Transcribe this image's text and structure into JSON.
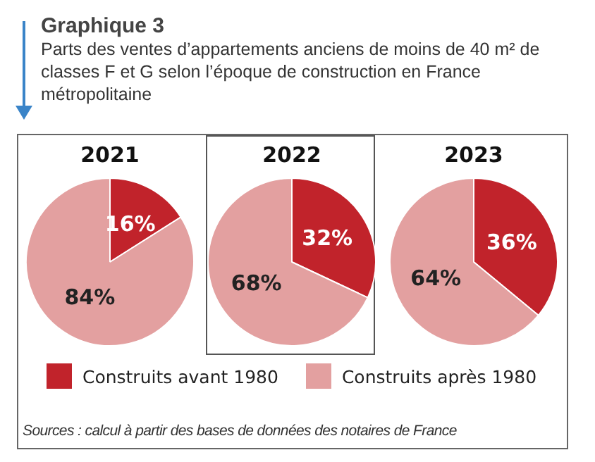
{
  "chart_data": [
    {
      "type": "pie",
      "title": "2021",
      "subtitle": "Parts des ventes d’appartements anciens de moins de 40 m² de classes F et G selon l’époque de construction en France métropolitaine",
      "annotations": [
        "Graphique 3",
        "Sources : calcul à partir des bases de données des notaires de France"
      ],
      "categories": [
        "Construits avant 1980",
        "Construits après 1980"
      ],
      "values": [
        16,
        84
      ],
      "colors": [
        "#c1232b",
        "#e3a0a0"
      ],
      "value_labels": [
        "16%",
        "84%"
      ],
      "legend": "bottom"
    },
    {
      "type": "pie",
      "title": "2022",
      "values": [
        32,
        68
      ],
      "colors": [
        "#c1232b",
        "#e3a0a0"
      ],
      "value_labels": [
        "32%",
        "68%"
      ]
    },
    {
      "type": "pie",
      "title": "2023",
      "values": [
        36,
        64
      ],
      "colors": [
        "#c1232b",
        "#e3a0a0"
      ],
      "value_labels": [
        "36%",
        "64%"
      ]
    }
  ]
}
